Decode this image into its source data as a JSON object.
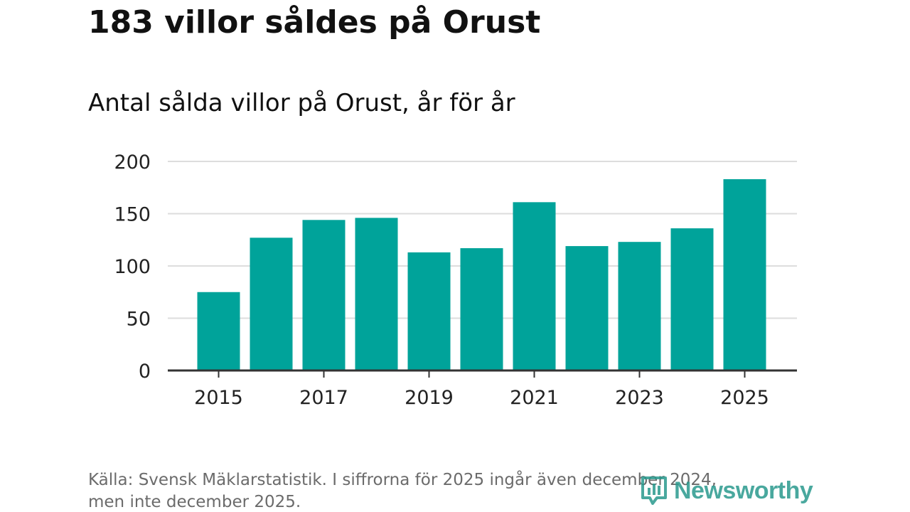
{
  "headline": "183 villor såldes på Orust",
  "subtitle": "Antal sålda villor på Orust, år för år",
  "source_line1": "Källa: Svensk Mäklarstatistik. I siffrorna för 2025 ingår även december 2024,",
  "source_line2": "men inte december 2025.",
  "logo": {
    "text": "Newsworthy",
    "icon": "newsworthy-logo-icon",
    "color": "#2a9a8e"
  },
  "colors": {
    "bar": "#00a39a",
    "grid": "#dddddd",
    "axis": "#333333"
  },
  "chart_data": {
    "type": "bar",
    "title": "Antal sålda villor på Orust, år för år",
    "categories": [
      "2015",
      "2016",
      "2017",
      "2018",
      "2019",
      "2020",
      "2021",
      "2022",
      "2023",
      "2024",
      "2025"
    ],
    "values": [
      75,
      127,
      144,
      146,
      113,
      117,
      161,
      119,
      123,
      136,
      183
    ],
    "x_tick_labels": [
      "2015",
      "2017",
      "2019",
      "2021",
      "2023",
      "2025"
    ],
    "y_ticks": [
      0,
      50,
      100,
      150,
      200
    ],
    "ylim": [
      0,
      200
    ],
    "xlabel": "",
    "ylabel": "",
    "grid": true
  }
}
